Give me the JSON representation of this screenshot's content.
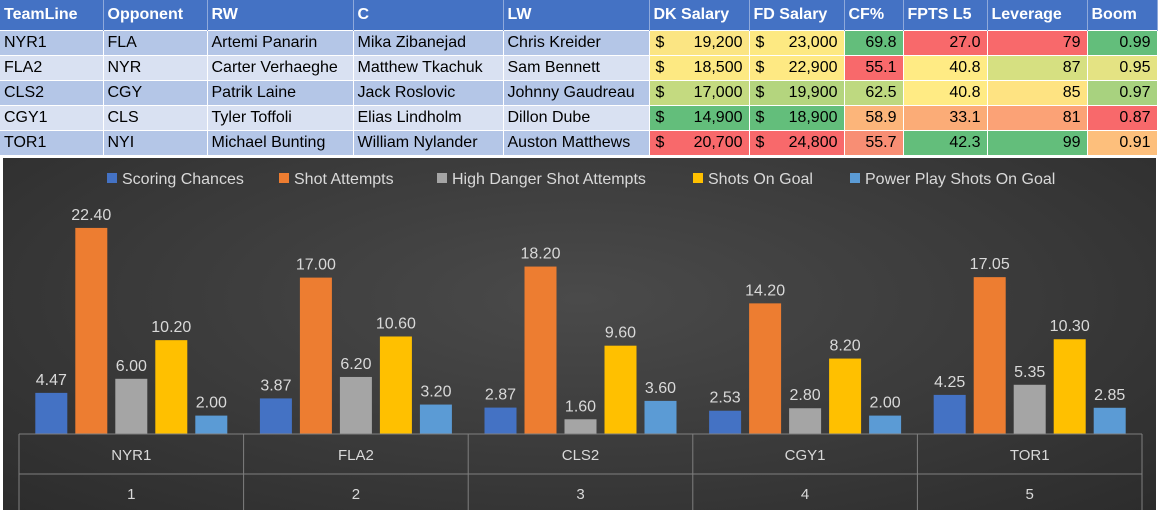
{
  "table": {
    "headers": [
      "TeamLine",
      "Opponent",
      "RW",
      "C",
      "LW",
      "DK Salary",
      "FD Salary",
      "CF%",
      "FPTS L5",
      "Leverage",
      "Boom"
    ],
    "currency_symbol": "$",
    "rows": [
      {
        "teamline": "NYR1",
        "opponent": "FLA",
        "rw": "Artemi Panarin",
        "c": "Mika Zibanejad",
        "lw": "Chris Kreider",
        "dk_salary": "19,200",
        "fd_salary": "23,000",
        "cf_pct": "69.8",
        "fpts_l5": "27.0",
        "leverage": "79",
        "boom": "0.99"
      },
      {
        "teamline": "FLA2",
        "opponent": "NYR",
        "rw": "Carter Verhaeghe",
        "c": "Matthew Tkachuk",
        "lw": "Sam Bennett",
        "dk_salary": "18,500",
        "fd_salary": "22,900",
        "cf_pct": "55.1",
        "fpts_l5": "40.8",
        "leverage": "87",
        "boom": "0.95"
      },
      {
        "teamline": "CLS2",
        "opponent": "CGY",
        "rw": "Patrik Laine",
        "c": "Jack Roslovic",
        "lw": "Johnny Gaudreau",
        "dk_salary": "17,000",
        "fd_salary": "19,900",
        "cf_pct": "62.5",
        "fpts_l5": "40.8",
        "leverage": "85",
        "boom": "0.97"
      },
      {
        "teamline": "CGY1",
        "opponent": "CLS",
        "rw": "Tyler Toffoli",
        "c": "Elias Lindholm",
        "lw": "Dillon Dube",
        "dk_salary": "14,900",
        "fd_salary": "18,900",
        "cf_pct": "58.9",
        "fpts_l5": "33.1",
        "leverage": "81",
        "boom": "0.87"
      },
      {
        "teamline": "TOR1",
        "opponent": "NYI",
        "rw": "Michael Bunting",
        "c": "William Nylander",
        "lw": "Auston Matthews",
        "dk_salary": "20,700",
        "fd_salary": "24,800",
        "cf_pct": "55.7",
        "fpts_l5": "42.3",
        "leverage": "99",
        "boom": "0.91"
      }
    ],
    "cell_colors": {
      "dk_salary": [
        "#fbe583",
        "#fde982",
        "#c4da80",
        "#63be7b",
        "#f8696b"
      ],
      "fd_salary": [
        "#fde982",
        "#fee983",
        "#b4d57e",
        "#63be7b",
        "#f8696b"
      ],
      "cf_pct": [
        "#63be7b",
        "#f8696b",
        "#bed980",
        "#fcb57a",
        "#f88e74"
      ],
      "fpts_l5": [
        "#f8696b",
        "#ffeb84",
        "#ffeb84",
        "#fbac77",
        "#63be7b"
      ],
      "leverage": [
        "#f8696b",
        "#d6e081",
        "#fee382",
        "#fba276",
        "#63be7b"
      ],
      "boom": [
        "#63be7b",
        "#e4e383",
        "#a8d27f",
        "#f8696b",
        "#fdbf7c"
      ]
    }
  },
  "chart_data": {
    "type": "bar",
    "categories": [
      {
        "label": "NYR1",
        "index": "1"
      },
      {
        "label": "FLA2",
        "index": "2"
      },
      {
        "label": "CLS2",
        "index": "3"
      },
      {
        "label": "CGY1",
        "index": "4"
      },
      {
        "label": "TOR1",
        "index": "5"
      }
    ],
    "series": [
      {
        "name": "Scoring Chances",
        "color": "#4472c4",
        "values": [
          4.47,
          3.87,
          2.87,
          2.53,
          4.25
        ],
        "labels": [
          "4.47",
          "3.87",
          "2.87",
          "2.53",
          "4.25"
        ]
      },
      {
        "name": "Shot Attempts",
        "color": "#ed7d31",
        "values": [
          22.4,
          17.0,
          18.2,
          14.2,
          17.05
        ],
        "labels": [
          "22.40",
          "17.00",
          "18.20",
          "14.20",
          "17.05"
        ]
      },
      {
        "name": "High Danger Shot Attempts",
        "color": "#a5a5a5",
        "values": [
          6.0,
          6.2,
          1.6,
          2.8,
          5.35
        ],
        "labels": [
          "6.00",
          "6.20",
          "1.60",
          "2.80",
          "5.35"
        ]
      },
      {
        "name": "Shots On Goal",
        "color": "#ffc000",
        "values": [
          10.2,
          10.6,
          9.6,
          8.2,
          10.3
        ],
        "labels": [
          "10.20",
          "10.60",
          "9.60",
          "8.20",
          "10.30"
        ]
      },
      {
        "name": "Power Play Shots On Goal",
        "color": "#5b9bd5",
        "values": [
          2.0,
          3.2,
          3.6,
          2.0,
          2.85
        ],
        "labels": [
          "2.00",
          "3.20",
          "3.60",
          "2.00",
          "2.85"
        ]
      }
    ],
    "legend_position": "top",
    "grid": false,
    "ylim": [
      0,
      25
    ]
  }
}
